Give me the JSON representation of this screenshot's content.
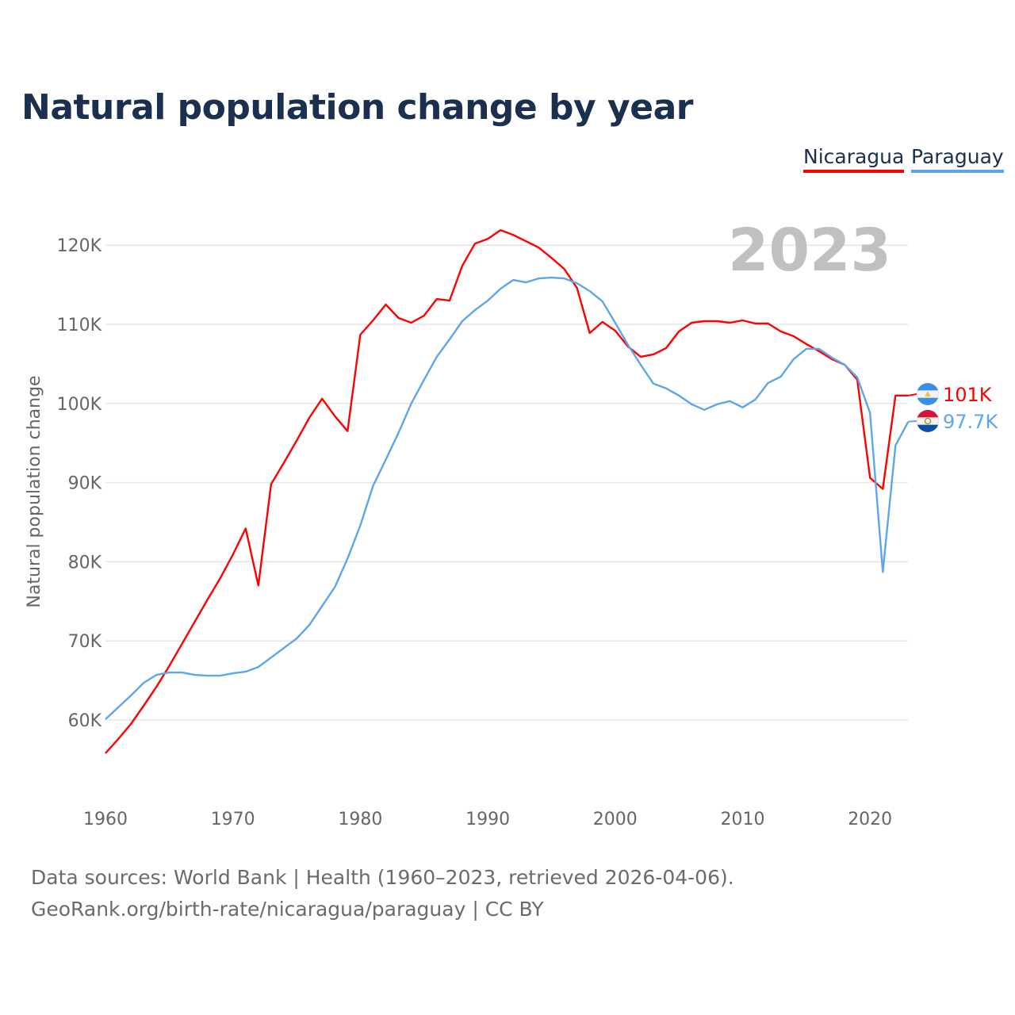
{
  "chart_data": {
    "type": "line",
    "title": "Natural population change by year",
    "xlabel": "",
    "ylabel": "Natural population change",
    "xlim": [
      1960,
      2023
    ],
    "ylim": [
      52000,
      125000
    ],
    "grid": true,
    "legend_position": "top-right",
    "current_year_label": "2023",
    "x_ticks": [
      1960,
      1970,
      1980,
      1990,
      2000,
      2010,
      2020
    ],
    "x_tick_labels": [
      "1960",
      "1970",
      "1980",
      "1990",
      "2000",
      "2010",
      "2020"
    ],
    "y_ticks": [
      60000,
      70000,
      80000,
      90000,
      100000,
      110000,
      120000
    ],
    "y_tick_labels": [
      "60K",
      "70K",
      "80K",
      "90K",
      "100K",
      "110K",
      "120K"
    ],
    "x_start": 1960,
    "series": [
      {
        "name": "Nicaragua",
        "color": "#ff0000",
        "end_label": "101K",
        "flag": "nicaragua-flag",
        "values": [
          55800,
          57600,
          59500,
          61800,
          64200,
          66800,
          69600,
          72400,
          75200,
          77900,
          80900,
          84200,
          77000,
          89800,
          92500,
          95300,
          98200,
          100600,
          98400,
          96500,
          108700,
          110500,
          112500,
          110800,
          110200,
          111100,
          113200,
          113000,
          117400,
          120200,
          120800,
          121900,
          121300,
          120500,
          119700,
          118400,
          117000,
          114600,
          108900,
          110300,
          109200,
          107200,
          105900,
          106200,
          107000,
          109100,
          110200,
          110400,
          110400,
          110200,
          110500,
          110100,
          110100,
          109100,
          108500,
          107500,
          106600,
          105600,
          104900,
          103000,
          90600,
          89200,
          101000,
          101000
        ]
      },
      {
        "name": "Paraguay",
        "color": "#5da6ea",
        "end_label": "97.7K",
        "flag": "paraguay-flag",
        "values": [
          60100,
          61600,
          63100,
          64700,
          65700,
          66000,
          66000,
          65700,
          65600,
          65600,
          65900,
          66100,
          66700,
          67900,
          69100,
          70300,
          72000,
          74400,
          76800,
          80400,
          84600,
          89600,
          92900,
          96300,
          100000,
          103000,
          105900,
          108100,
          110400,
          111800,
          113000,
          114500,
          115600,
          115300,
          115800,
          115900,
          115800,
          115200,
          114200,
          112900,
          110200,
          107400,
          104900,
          102500,
          101900,
          101000,
          99900,
          99200,
          99900,
          100300,
          99500,
          100500,
          102600,
          103400,
          105600,
          106900,
          106900,
          105800,
          104900,
          103300,
          98800,
          78700,
          94700,
          97700
        ]
      }
    ]
  },
  "footer": {
    "line1": "Data sources: World Bank | Health (1960–2023, retrieved 2026-04-06).",
    "line2": "GeoRank.org/birth-rate/nicaragua/paraguay | CC BY"
  }
}
